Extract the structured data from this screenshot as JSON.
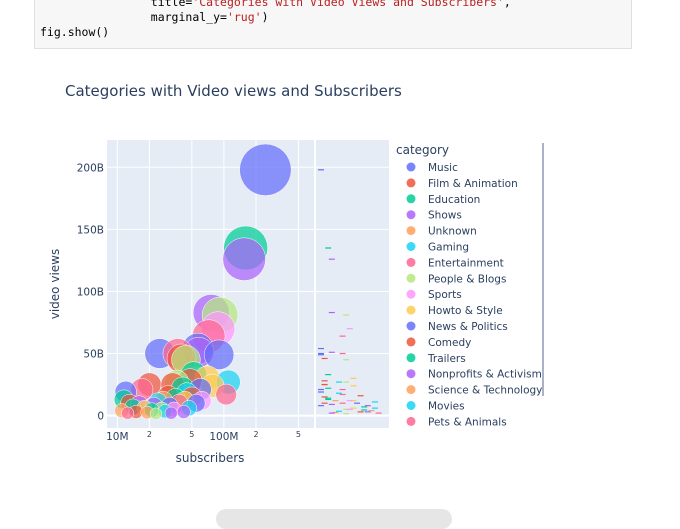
{
  "code_cell": {
    "lines": [
      {
        "pre": "                title=",
        "str": "'Categories with Video Views and Subscribers'",
        "post": ","
      },
      {
        "pre": "                marginal_y=",
        "str": "'rug'",
        "post": ")"
      },
      {
        "pre": "fig.show()",
        "str": "",
        "post": ""
      }
    ]
  },
  "chart_data": {
    "type": "scatter",
    "title": "Categories with Video views and Subscribers",
    "xlabel": "subscribers",
    "ylabel": "video views",
    "x_scale": "log",
    "xlim": [
      8000000,
      700000000
    ],
    "ylim": [
      -10000000000,
      222000000000
    ],
    "x_ticks": [
      {
        "value": 10000000,
        "label": "10M",
        "major": true
      },
      {
        "value": 20000000,
        "label": "2",
        "major": false
      },
      {
        "value": 50000000,
        "label": "5",
        "major": false
      },
      {
        "value": 100000000,
        "label": "100M",
        "major": true
      },
      {
        "value": 200000000,
        "label": "2",
        "major": false
      },
      {
        "value": 500000000,
        "label": "5",
        "major": false
      }
    ],
    "y_ticks": [
      {
        "value": 0,
        "label": "0"
      },
      {
        "value": 50000000000,
        "label": "50B"
      },
      {
        "value": 100000000000,
        "label": "100B"
      },
      {
        "value": 150000000000,
        "label": "150B"
      },
      {
        "value": 200000000000,
        "label": "200B"
      }
    ],
    "marginal_y": "rug",
    "legend": {
      "title": "category",
      "placement": "right",
      "entries": [
        {
          "name": "Music",
          "color": "#636efa"
        },
        {
          "name": "Film & Animation",
          "color": "#EF553B"
        },
        {
          "name": "Education",
          "color": "#00cc96"
        },
        {
          "name": "Shows",
          "color": "#ab63fa"
        },
        {
          "name": "Unknown",
          "color": "#FFA15A"
        },
        {
          "name": "Gaming",
          "color": "#19d3f3"
        },
        {
          "name": "Entertainment",
          "color": "#FF6692"
        },
        {
          "name": "People & Blogs",
          "color": "#B6E880"
        },
        {
          "name": "Sports",
          "color": "#FF97FF"
        },
        {
          "name": "Howto & Style",
          "color": "#FECB52"
        },
        {
          "name": "News & Politics",
          "color": "#636efa"
        },
        {
          "name": "Comedy",
          "color": "#EF553B"
        },
        {
          "name": "Trailers",
          "color": "#00cc96"
        },
        {
          "name": "Nonprofits & Activism",
          "color": "#ab63fa"
        },
        {
          "name": "Science & Technology",
          "color": "#FFA15A"
        },
        {
          "name": "Movies",
          "color": "#19d3f3"
        },
        {
          "name": "Pets & Animals",
          "color": "#FF6692"
        }
      ]
    },
    "points": [
      {
        "x": 245000000,
        "y": 198000000000,
        "c": 0
      },
      {
        "x": 160000000,
        "y": 135000000000,
        "c": 2
      },
      {
        "x": 155000000,
        "y": 126000000000,
        "c": 3
      },
      {
        "x": 76000000,
        "y": 83000000000,
        "c": 3
      },
      {
        "x": 92000000,
        "y": 81000000000,
        "c": 7
      },
      {
        "x": 88000000,
        "y": 70000000000,
        "c": 8
      },
      {
        "x": 72000000,
        "y": 64000000000,
        "c": 6
      },
      {
        "x": 57000000,
        "y": 54000000000,
        "c": 0
      },
      {
        "x": 58000000,
        "y": 51000000000,
        "c": 3
      },
      {
        "x": 90000000,
        "y": 49000000000,
        "c": 0
      },
      {
        "x": 25000000,
        "y": 50000000000,
        "c": 0
      },
      {
        "x": 37000000,
        "y": 50000000000,
        "c": 6
      },
      {
        "x": 40000000,
        "y": 46000000000,
        "c": 1
      },
      {
        "x": 44000000,
        "y": 45000000000,
        "c": 7
      },
      {
        "x": 70000000,
        "y": 30000000000,
        "c": 9
      },
      {
        "x": 110000000,
        "y": 27000000000,
        "c": 5
      },
      {
        "x": 78000000,
        "y": 24000000000,
        "c": 9
      },
      {
        "x": 60000000,
        "y": 21000000000,
        "c": 0
      },
      {
        "x": 105000000,
        "y": 17000000000,
        "c": 6
      },
      {
        "x": 12000000,
        "y": 19000000000,
        "c": 0
      },
      {
        "x": 17000000,
        "y": 21000000000,
        "c": 6
      },
      {
        "x": 20000000,
        "y": 25000000000,
        "c": 1
      },
      {
        "x": 33000000,
        "y": 25000000000,
        "c": 1
      },
      {
        "x": 36000000,
        "y": 27000000000,
        "c": 7
      },
      {
        "x": 41000000,
        "y": 22000000000,
        "c": 2
      },
      {
        "x": 45000000,
        "y": 18000000000,
        "c": 5
      },
      {
        "x": 52000000,
        "y": 33000000000,
        "c": 2
      },
      {
        "x": 48000000,
        "y": 28000000000,
        "c": 1
      },
      {
        "x": 30000000,
        "y": 16000000000,
        "c": 11
      },
      {
        "x": 27000000,
        "y": 12000000000,
        "c": 4
      },
      {
        "x": 13000000,
        "y": 10000000000,
        "c": 1
      },
      {
        "x": 14000000,
        "y": 7000000000,
        "c": 12
      },
      {
        "x": 16000000,
        "y": 9000000000,
        "c": 3
      },
      {
        "x": 18000000,
        "y": 6000000000,
        "c": 9
      },
      {
        "x": 22000000,
        "y": 8000000000,
        "c": 13
      },
      {
        "x": 24000000,
        "y": 11000000000,
        "c": 15
      },
      {
        "x": 26000000,
        "y": 5000000000,
        "c": 7
      },
      {
        "x": 31000000,
        "y": 8000000000,
        "c": 0
      },
      {
        "x": 35000000,
        "y": 14000000000,
        "c": 2
      },
      {
        "x": 38000000,
        "y": 10000000000,
        "c": 6
      },
      {
        "x": 43000000,
        "y": 12000000000,
        "c": 9
      },
      {
        "x": 50000000,
        "y": 15000000000,
        "c": 1
      },
      {
        "x": 55000000,
        "y": 10000000000,
        "c": 10
      },
      {
        "x": 62000000,
        "y": 12000000000,
        "c": 8
      },
      {
        "x": 11000000,
        "y": 4000000000,
        "c": 14
      },
      {
        "x": 12500000,
        "y": 2000000000,
        "c": 16
      },
      {
        "x": 15000000,
        "y": 3000000000,
        "c": 11
      },
      {
        "x": 19000000,
        "y": 2500000000,
        "c": 4
      },
      {
        "x": 21000000,
        "y": 4500000000,
        "c": 12
      },
      {
        "x": 23000000,
        "y": 1500000000,
        "c": 7
      },
      {
        "x": 28000000,
        "y": 3500000000,
        "c": 5
      },
      {
        "x": 32000000,
        "y": 2000000000,
        "c": 3
      },
      {
        "x": 34000000,
        "y": 5000000000,
        "c": 8
      },
      {
        "x": 42000000,
        "y": 3000000000,
        "c": 13
      },
      {
        "x": 47000000,
        "y": 6000000000,
        "c": 15
      },
      {
        "x": 11500000,
        "y": 13000000000,
        "c": 2
      }
    ]
  }
}
